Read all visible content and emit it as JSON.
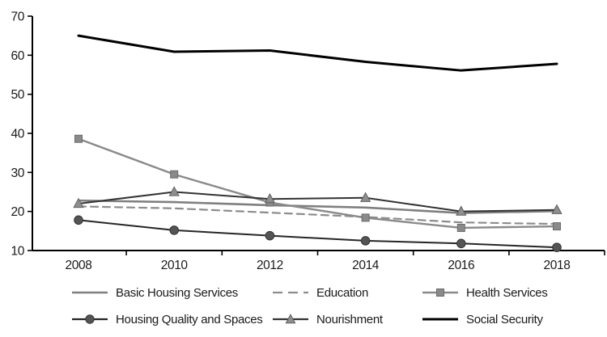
{
  "page": {
    "background": "#ffffff",
    "axis_color": "#000000",
    "text_color": "#1a1a1a"
  },
  "chart_data": {
    "type": "line",
    "title": "",
    "xlabel": "",
    "ylabel": "",
    "categories": [
      "2008",
      "2010",
      "2012",
      "2014",
      "2016",
      "2018"
    ],
    "ylim": [
      10,
      70
    ],
    "yticks": [
      "10",
      "20",
      "30",
      "40",
      "50",
      "60",
      "70"
    ],
    "grid": false,
    "legend_position": "bottom",
    "series": [
      {
        "name": "Basic Housing Services",
        "values": [
          22.8,
          22.4,
          21.6,
          21.0,
          19.6,
          20.1
        ],
        "color": "#7f7f7f",
        "dash": "solid",
        "marker": "none",
        "marker_color": "",
        "marker_stroke": "",
        "line_width": 2.6
      },
      {
        "name": "Education",
        "values": [
          21.3,
          20.8,
          19.7,
          18.6,
          17.2,
          16.8
        ],
        "color": "#8c8c8c",
        "dash": "dashed",
        "marker": "none",
        "marker_color": "",
        "marker_stroke": "",
        "line_width": 2.2
      },
      {
        "name": "Health Services",
        "values": [
          38.6,
          29.5,
          22.3,
          18.4,
          15.8,
          16.2
        ],
        "color": "#8a8a8a",
        "dash": "solid",
        "marker": "square",
        "marker_color": "#8a8a8a",
        "marker_stroke": "#6b6b6b",
        "line_width": 2.4
      },
      {
        "name": "Housing Quality and Spaces",
        "values": [
          17.8,
          15.2,
          13.8,
          12.5,
          11.8,
          10.8
        ],
        "color": "#262626",
        "dash": "solid",
        "marker": "circle",
        "marker_color": "#545454",
        "marker_stroke": "#333333",
        "line_width": 2
      },
      {
        "name": "Nourishment",
        "values": [
          22.0,
          25.0,
          23.2,
          23.5,
          20.0,
          20.4
        ],
        "color": "#333333",
        "dash": "solid",
        "marker": "triangle",
        "marker_color": "#8f8f8f",
        "marker_stroke": "#5e5e5e",
        "line_width": 2
      },
      {
        "name": "Social Security",
        "values": [
          65.0,
          60.9,
          61.2,
          58.3,
          56.1,
          57.8
        ],
        "color": "#000000",
        "dash": "solid",
        "marker": "none",
        "marker_color": "",
        "marker_stroke": "",
        "line_width": 3
      }
    ]
  }
}
